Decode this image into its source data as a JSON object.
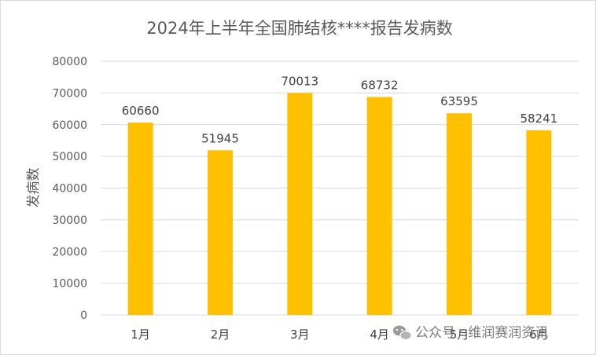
{
  "chart_data": {
    "type": "bar",
    "title": "2024年上半年全国肺结核****报告发病数",
    "ylabel": "发病数",
    "xlabel": "",
    "categories": [
      "1月",
      "2月",
      "3月",
      "4月",
      "5月",
      "6月"
    ],
    "values": [
      60660,
      51945,
      70013,
      68732,
      63595,
      58241
    ],
    "yticks": [
      0,
      10000,
      20000,
      30000,
      40000,
      50000,
      60000,
      70000,
      80000
    ],
    "ylim": [
      0,
      80000
    ],
    "grid": true,
    "legend": "none",
    "bar_color": "#ffc000",
    "grid_color": "#d9d9d9"
  },
  "watermark": {
    "icon": "wechat-icon",
    "text": "公众号 · 维润赛润资讯"
  }
}
